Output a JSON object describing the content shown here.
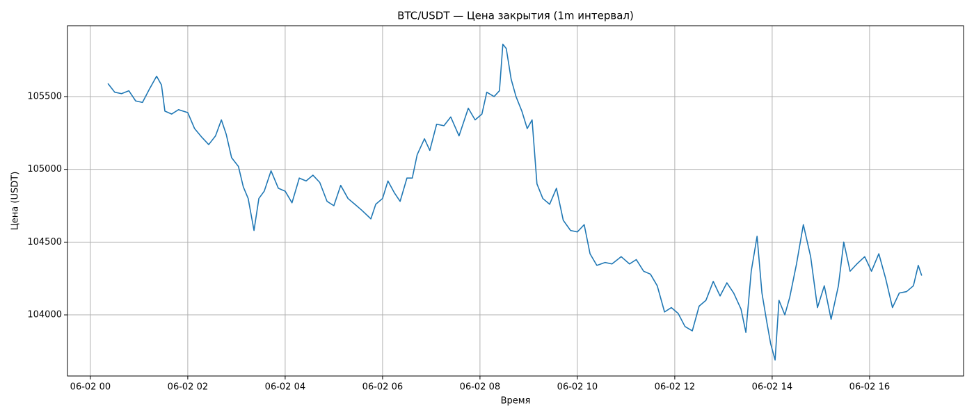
{
  "chart_data": {
    "type": "line",
    "title": "BTC/USDT — Цена закрытия (1m интервал)",
    "x_label": "Время",
    "y_label": "Цена (USDT)",
    "x": [
      0.36,
      0.5,
      0.64,
      0.79,
      0.93,
      1.07,
      1.21,
      1.36,
      1.46,
      1.53,
      1.67,
      1.81,
      2.0,
      2.14,
      2.29,
      2.43,
      2.57,
      2.69,
      2.79,
      2.9,
      3.04,
      3.14,
      3.24,
      3.36,
      3.46,
      3.57,
      3.71,
      3.86,
      4.0,
      4.14,
      4.29,
      4.43,
      4.57,
      4.71,
      4.86,
      5.0,
      5.14,
      5.29,
      5.43,
      5.57,
      5.76,
      5.86,
      6.0,
      6.11,
      6.24,
      6.36,
      6.5,
      6.61,
      6.71,
      6.86,
      6.97,
      7.11,
      7.26,
      7.4,
      7.57,
      7.76,
      7.9,
      8.04,
      8.14,
      8.29,
      8.4,
      8.47,
      8.54,
      8.64,
      8.74,
      8.86,
      8.97,
      9.07,
      9.17,
      9.29,
      9.43,
      9.57,
      9.71,
      9.86,
      10.0,
      10.14,
      10.26,
      10.4,
      10.57,
      10.71,
      10.9,
      11.07,
      11.21,
      11.36,
      11.5,
      11.64,
      11.79,
      11.93,
      12.07,
      12.21,
      12.36,
      12.5,
      12.64,
      12.79,
      12.93,
      13.07,
      13.21,
      13.36,
      13.46,
      13.57,
      13.69,
      13.79,
      13.89,
      13.97,
      14.06,
      14.14,
      14.26,
      14.36,
      14.5,
      14.64,
      14.79,
      14.93,
      15.07,
      15.21,
      15.36,
      15.47,
      15.6,
      15.74,
      15.9,
      16.04,
      16.19,
      16.33,
      16.47,
      16.61,
      16.76,
      16.9,
      17.0,
      17.07
    ],
    "series": [
      {
        "name": "BTC/USDT",
        "color": "#1f77b4",
        "values": [
          105590,
          105530,
          105520,
          105540,
          105470,
          105460,
          105550,
          105640,
          105580,
          105400,
          105380,
          105410,
          105390,
          105280,
          105220,
          105170,
          105230,
          105340,
          105240,
          105080,
          105020,
          104880,
          104800,
          104580,
          104800,
          104850,
          104990,
          104870,
          104850,
          104770,
          104940,
          104920,
          104960,
          104910,
          104780,
          104750,
          104890,
          104800,
          104760,
          104720,
          104660,
          104760,
          104800,
          104920,
          104840,
          104780,
          104940,
          104940,
          105100,
          105210,
          105130,
          105310,
          105300,
          105360,
          105230,
          105420,
          105340,
          105380,
          105530,
          105500,
          105540,
          105860,
          105830,
          105620,
          105500,
          105400,
          105280,
          105340,
          104900,
          104800,
          104760,
          104870,
          104650,
          104580,
          104570,
          104620,
          104420,
          104340,
          104360,
          104350,
          104400,
          104350,
          104380,
          104300,
          104280,
          104200,
          104020,
          104050,
          104010,
          103920,
          103890,
          104060,
          104100,
          104230,
          104130,
          104220,
          104150,
          104040,
          103880,
          104300,
          104540,
          104150,
          103950,
          103800,
          103690,
          104100,
          104000,
          104120,
          104350,
          104620,
          104400,
          104050,
          104200,
          103970,
          104200,
          104500,
          104300,
          104350,
          104400,
          104300,
          104420,
          104250,
          104050,
          104150,
          104160,
          104200,
          104340,
          104270
        ]
      }
    ],
    "xlim": [
      -0.47,
      17.93
    ],
    "ylim": [
      103580,
      105987
    ],
    "xticks": [
      {
        "value": 0,
        "label": "06-02 00"
      },
      {
        "value": 2,
        "label": "06-02 02"
      },
      {
        "value": 4,
        "label": "06-02 04"
      },
      {
        "value": 6,
        "label": "06-02 06"
      },
      {
        "value": 8,
        "label": "06-02 08"
      },
      {
        "value": 10,
        "label": "06-02 10"
      },
      {
        "value": 12,
        "label": "06-02 12"
      },
      {
        "value": 14,
        "label": "06-02 14"
      },
      {
        "value": 16,
        "label": "06-02 16"
      }
    ],
    "yticks": [
      104000,
      104500,
      105000,
      105500
    ],
    "grid": true
  }
}
